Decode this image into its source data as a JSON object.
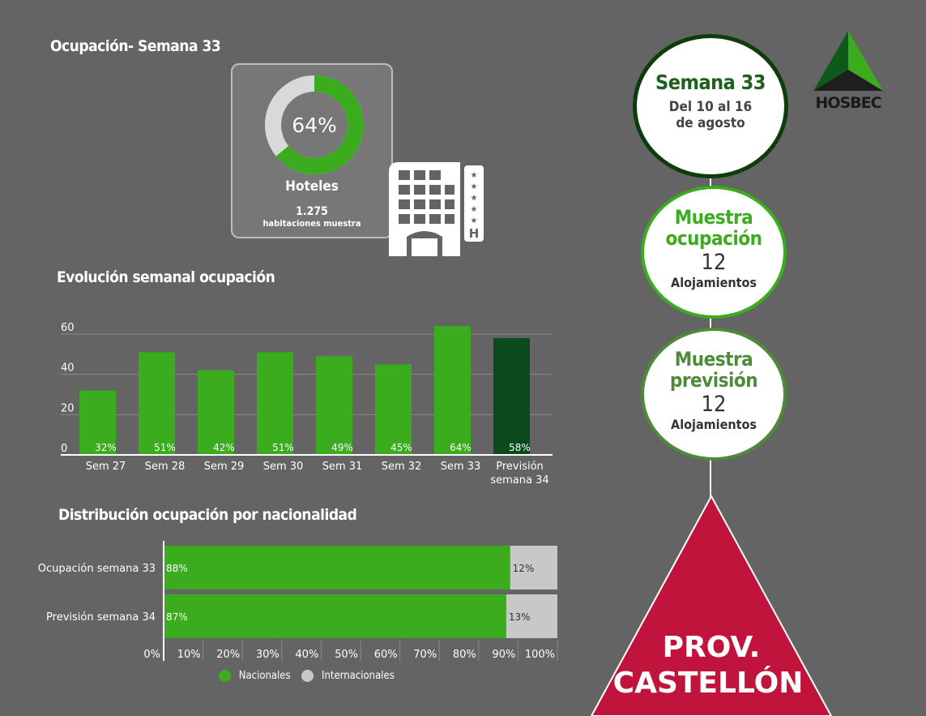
{
  "occupancy": {
    "title": "Ocupación- Semana 33",
    "value": 64,
    "value_label": "64%",
    "category": "Hoteles",
    "rooms": "1.275",
    "rooms_label": "habitaciones muestra"
  },
  "hotel_icon": {
    "icon": "hotel-building-icon",
    "letter": "H"
  },
  "week_badge": {
    "title": "Semana 33",
    "line1": "Del 10 al 16",
    "line2": "de agosto"
  },
  "sample_occupancy": {
    "title1": "Muestra",
    "title2": "ocupación",
    "count": "12",
    "unit": "Alojamientos"
  },
  "sample_forecast": {
    "title1": "Muestra",
    "title2": "previsión",
    "count": "12",
    "unit": "Alojamientos"
  },
  "logo": {
    "text": "HOSBEC"
  },
  "region": {
    "line1": "PROV.",
    "line2": "CASTELLÓN"
  },
  "colors": {
    "background": "#646464",
    "green": "#3aac1e",
    "dark_green": "#0b4a1d",
    "crimson": "#c0143c",
    "grey": "#c8c8c8"
  },
  "chart_data": [
    {
      "type": "bar",
      "title": "Evolución semanal ocupación",
      "categories": [
        "Sem 27",
        "Sem 28",
        "Sem 29",
        "Sem 30",
        "Sem 31",
        "Sem 32",
        "Sem 33",
        "Previsión semana 34"
      ],
      "values": [
        32,
        51,
        42,
        51,
        49,
        45,
        64,
        58
      ],
      "data_labels": [
        "32%",
        "51%",
        "42%",
        "51%",
        "49%",
        "45%",
        "64%",
        "58%"
      ],
      "ylim": [
        0,
        60
      ],
      "yticks": [
        0,
        20,
        40,
        60
      ],
      "grid": true
    },
    {
      "type": "bar",
      "orientation": "horizontal",
      "stacked": true,
      "title": "Distribución ocupación por nacionalidad",
      "categories": [
        "Ocupación semana 33",
        "Previsión semana 34"
      ],
      "series": [
        {
          "name": "Nacionales",
          "values": [
            88,
            87
          ],
          "labels": [
            "88%",
            "87%"
          ]
        },
        {
          "name": "Internacionales",
          "values": [
            12,
            13
          ],
          "labels": [
            "12%",
            "13%"
          ]
        }
      ],
      "xlim": [
        0,
        100
      ],
      "xticks": [
        "0%",
        "10%",
        "20%",
        "30%",
        "40%",
        "50%",
        "60%",
        "70%",
        "80%",
        "90%",
        "100%"
      ],
      "legend": "bottom"
    }
  ]
}
